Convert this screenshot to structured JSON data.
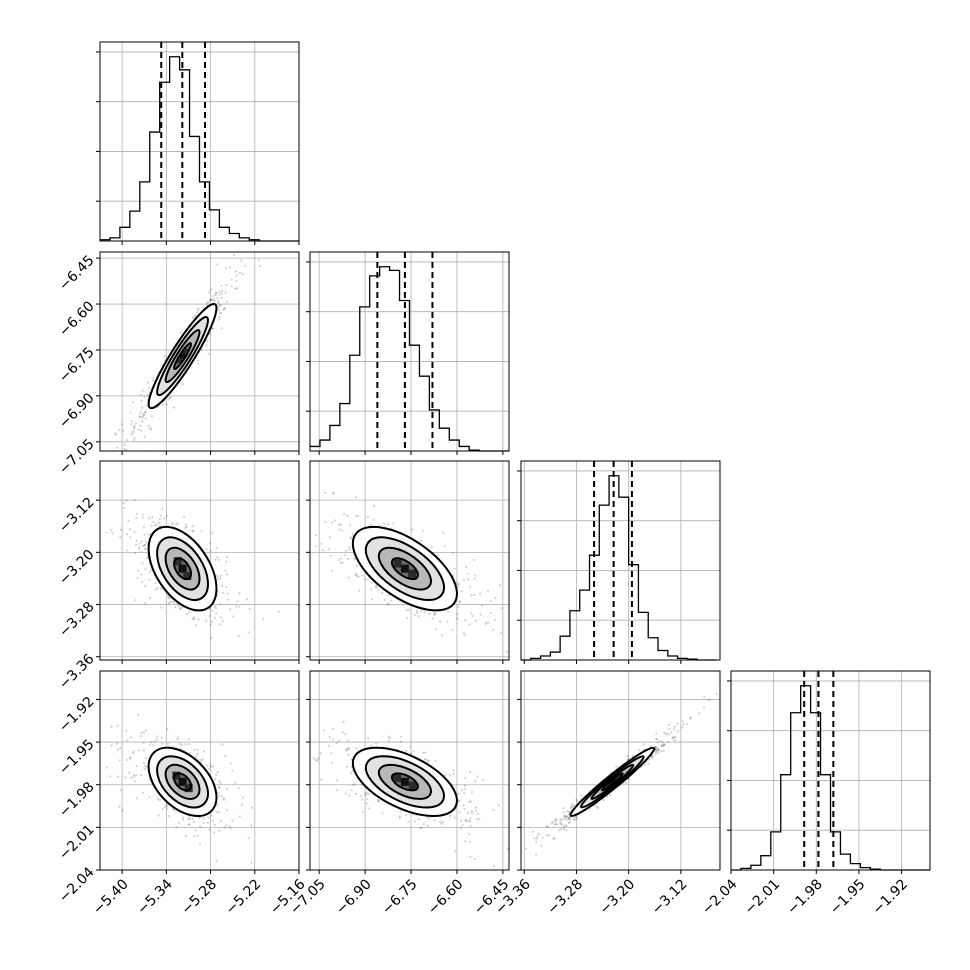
{
  "chart_data": {
    "type": "corner",
    "title": "",
    "grid": true,
    "parameters": [
      {
        "label": "",
        "range": [
          -5.43,
          -5.16
        ],
        "ticks": [
          -5.4,
          -5.34,
          -5.28,
          -5.22,
          -5.16
        ],
        "tick_labels": [
          "−5.40",
          "−5.34",
          "−5.28",
          "−5.22",
          "−5.16"
        ],
        "quantiles": [
          -5.3469,
          -5.3183,
          -5.2875
        ],
        "hist_edges": [
          -5.43,
          -5.4165,
          -5.403,
          -5.3895,
          -5.376,
          -5.3625,
          -5.349,
          -5.3355,
          -5.322,
          -5.3085,
          -5.295,
          -5.2815,
          -5.268,
          -5.2545,
          -5.241,
          -5.2275,
          -5.214,
          -5.2005,
          -5.187,
          -5.1735,
          -5.16
        ],
        "hist_counts": [
          2,
          5,
          22,
          48,
          95,
          175,
          255,
          296,
          275,
          168,
          95,
          50,
          22,
          12,
          5,
          2,
          0,
          0,
          0,
          0
        ]
      },
      {
        "label": "",
        "range": [
          -7.08,
          -6.43
        ],
        "ticks": [
          -7.05,
          -6.9,
          -6.75,
          -6.6,
          -6.45
        ],
        "tick_labels": [
          "−7.05",
          "−6.90",
          "−6.75",
          "−6.60",
          "−6.45"
        ],
        "quantiles": [
          -6.86,
          -6.77,
          -6.68
        ],
        "hist_edges": [
          -7.08,
          -7.0475,
          -7.015,
          -6.9825,
          -6.95,
          -6.9175,
          -6.885,
          -6.8525,
          -6.82,
          -6.7875,
          -6.755,
          -6.7225,
          -6.69,
          -6.6575,
          -6.625,
          -6.5925,
          -6.56,
          -6.5275,
          -6.495,
          -6.4625,
          -6.43
        ],
        "hist_counts": [
          5,
          12,
          28,
          52,
          105,
          158,
          192,
          202,
          198,
          165,
          116,
          82,
          45,
          25,
          12,
          5,
          1,
          0,
          0,
          0
        ]
      },
      {
        "label": "",
        "range": [
          -3.365,
          -3.06
        ],
        "ticks": [
          -3.36,
          -3.28,
          -3.2,
          -3.12
        ],
        "tick_labels": [
          "−3.36",
          "−3.28",
          "−3.20",
          "−3.12"
        ],
        "quantiles": [
          -3.253,
          -3.223,
          -3.195
        ],
        "hist_edges": [
          -3.365,
          -3.35,
          -3.335,
          -3.32,
          -3.305,
          -3.29,
          -3.275,
          -3.26,
          -3.245,
          -3.23,
          -3.215,
          -3.2,
          -3.185,
          -3.17,
          -3.155,
          -3.14,
          -3.125,
          -3.11,
          -3.095,
          -3.08,
          -3.065
        ],
        "hist_counts": [
          0,
          2,
          5,
          10,
          30,
          62,
          88,
          132,
          195,
          232,
          205,
          120,
          60,
          28,
          12,
          5,
          2,
          1,
          0,
          0
        ]
      },
      {
        "label": "",
        "range": [
          -2.04,
          -1.9
        ],
        "ticks": [
          -2.04,
          -2.01,
          -1.98,
          -1.95,
          -1.92
        ],
        "tick_labels": [
          "−2.04",
          "−2.01",
          "−1.98",
          "−1.95",
          "−1.92"
        ],
        "quantiles": [
          -1.9885,
          -1.9785,
          -1.968
        ],
        "hist_edges": [
          -2.04,
          -2.033,
          -2.026,
          -2.019,
          -2.012,
          -2.005,
          -1.998,
          -1.991,
          -1.984,
          -1.977,
          -1.97,
          -1.963,
          -1.956,
          -1.949,
          -1.942,
          -1.935,
          -1.928,
          -1.921,
          -1.914,
          -1.907,
          -1.9
        ],
        "hist_counts": [
          0,
          2,
          6,
          18,
          48,
          120,
          198,
          232,
          198,
          120,
          48,
          20,
          8,
          3,
          1,
          0,
          0,
          0,
          0,
          0
        ]
      }
    ],
    "pairs": [
      {
        "x": 0,
        "y": 1,
        "mean": [
          -5.318,
          -6.77
        ],
        "sd": [
          0.023,
          0.085
        ],
        "rho": 0.92
      },
      {
        "x": 0,
        "y": 2,
        "mean": [
          -5.318,
          -3.225
        ],
        "sd": [
          0.023,
          0.032
        ],
        "rho": -0.48
      },
      {
        "x": 1,
        "y": 2,
        "mean": [
          -6.77,
          -3.225
        ],
        "sd": [
          0.085,
          0.032
        ],
        "rho": -0.6
      },
      {
        "x": 0,
        "y": 3,
        "mean": [
          -5.318,
          -1.978
        ],
        "sd": [
          0.023,
          0.012
        ],
        "rho": -0.45
      },
      {
        "x": 1,
        "y": 3,
        "mean": [
          -6.77,
          -1.978
        ],
        "sd": [
          0.085,
          0.012
        ],
        "rho": -0.55
      },
      {
        "x": 2,
        "y": 3,
        "mean": [
          -3.225,
          -1.978
        ],
        "sd": [
          0.032,
          0.012
        ],
        "rho": 0.97
      }
    ],
    "contour_levels_sigma": [
      0.5,
      1.0,
      1.5,
      2.0
    ]
  }
}
